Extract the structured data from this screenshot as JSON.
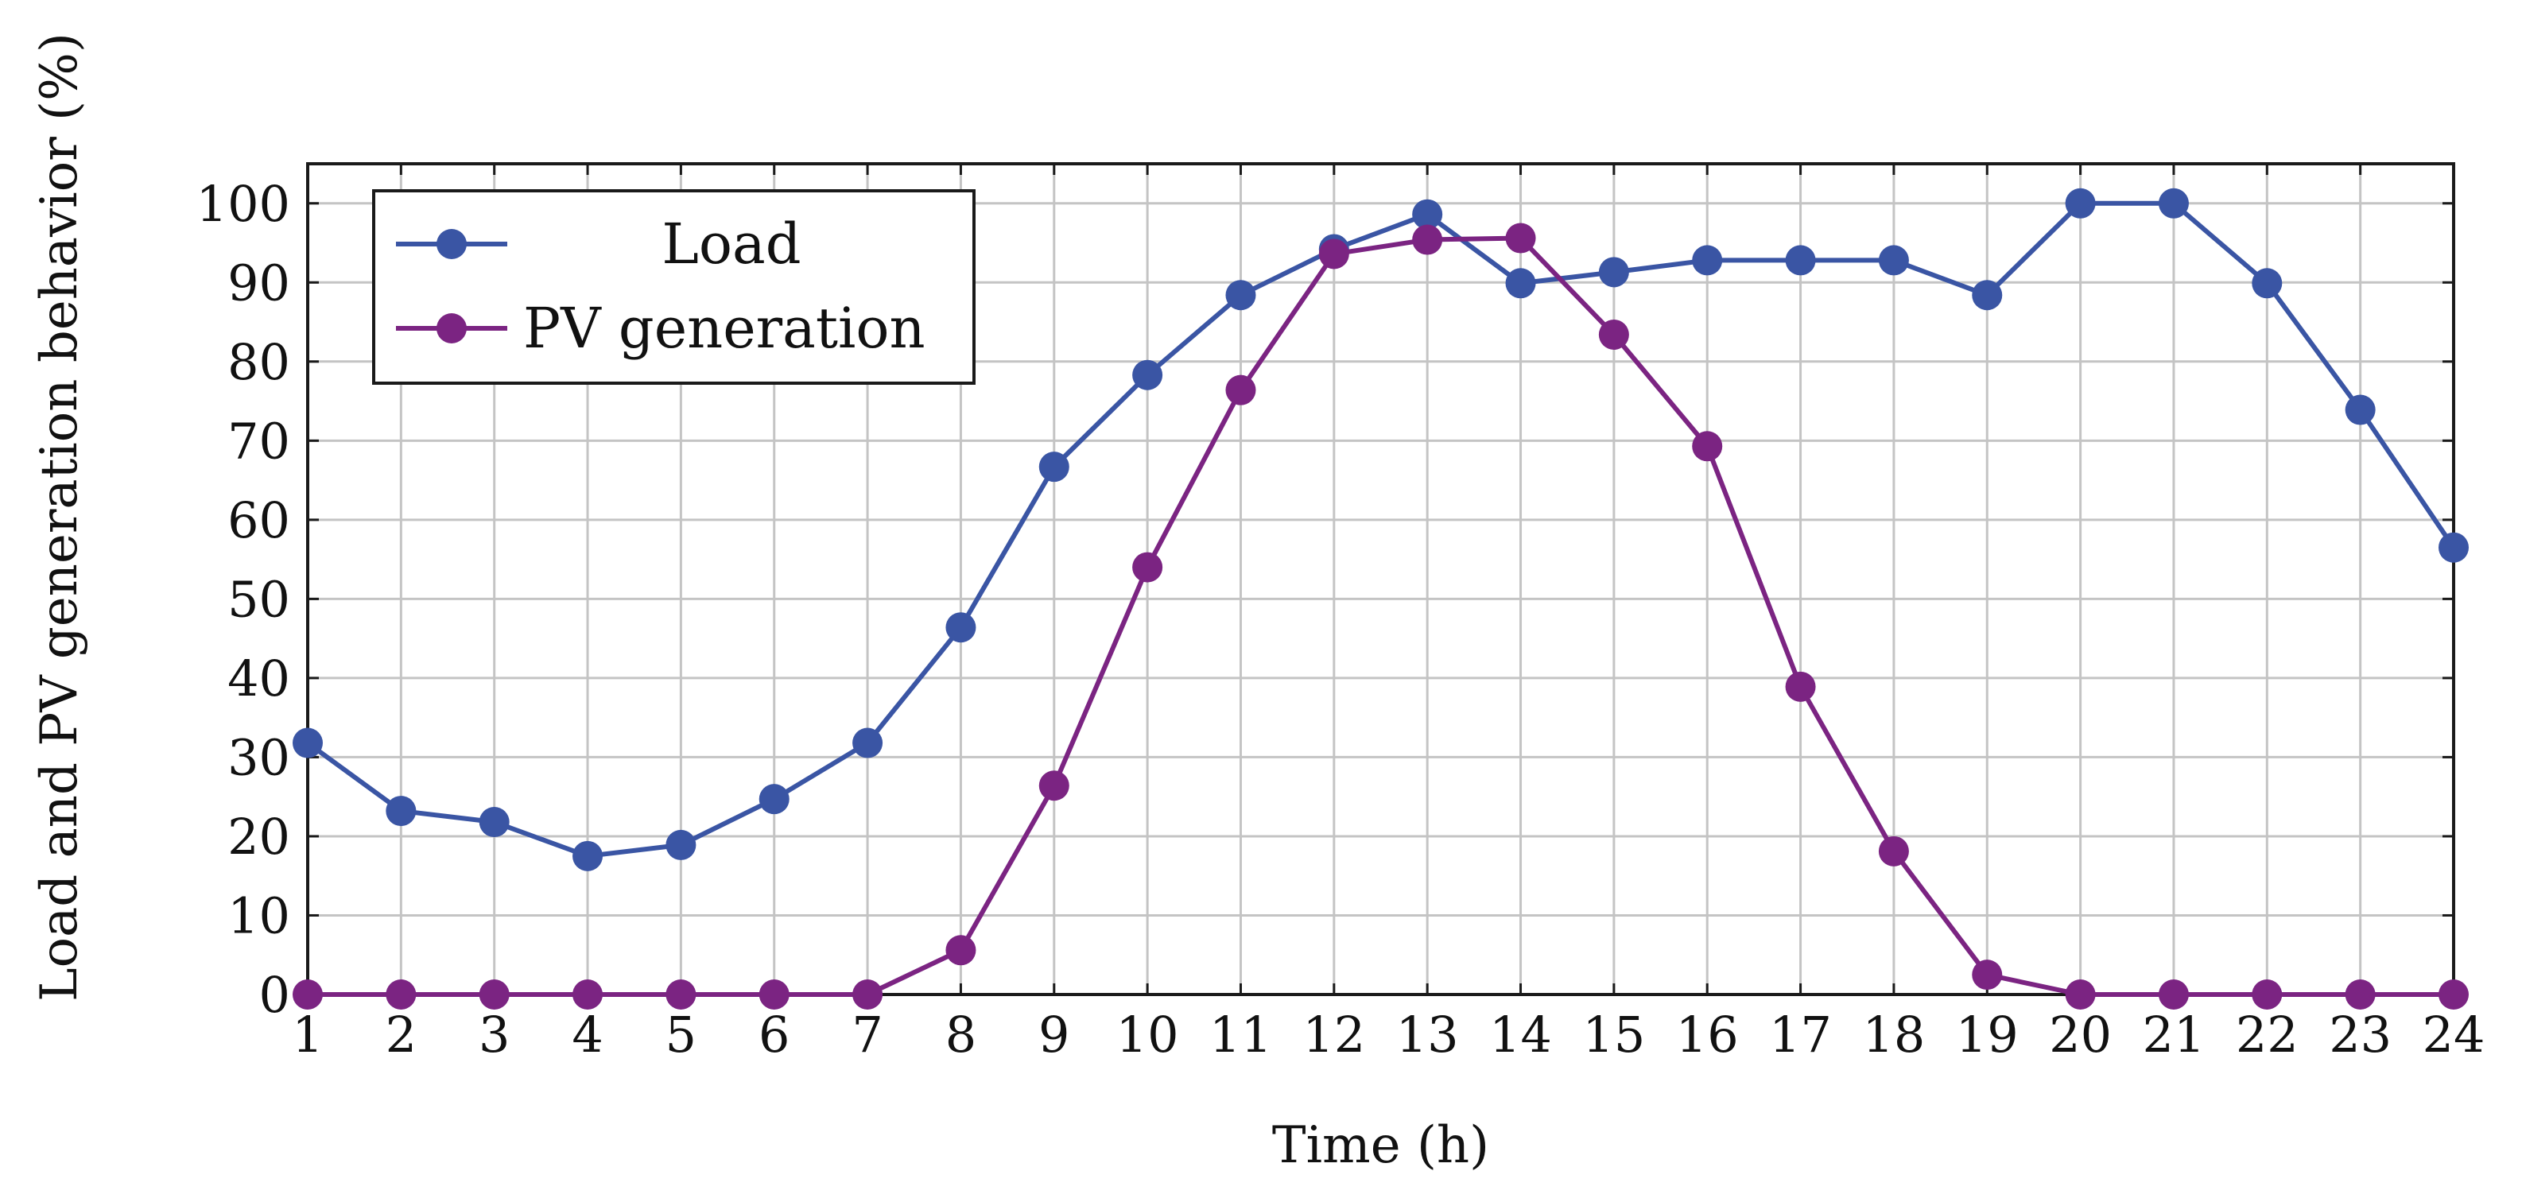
{
  "chart_data": {
    "type": "line",
    "title": "",
    "xlabel": "Time (h)",
    "ylabel": "Load and PV generation behavior (%)",
    "xlim": [
      1,
      24
    ],
    "ylim": [
      0,
      105
    ],
    "x": [
      1,
      2,
      3,
      4,
      5,
      6,
      7,
      8,
      9,
      10,
      11,
      12,
      13,
      14,
      15,
      16,
      17,
      18,
      19,
      20,
      21,
      22,
      23,
      24
    ],
    "x_ticks": [
      "1",
      "2",
      "3",
      "4",
      "5",
      "6",
      "7",
      "8",
      "9",
      "10",
      "11",
      "12",
      "13",
      "14",
      "15",
      "16",
      "17",
      "18",
      "19",
      "20",
      "21",
      "22",
      "23",
      "24"
    ],
    "y_ticks": [
      "0",
      "10",
      "20",
      "30",
      "40",
      "50",
      "60",
      "70",
      "80",
      "90",
      "100"
    ],
    "y_tick_values": [
      0,
      10,
      20,
      30,
      40,
      50,
      60,
      70,
      80,
      90,
      100
    ],
    "grid": true,
    "legend_position": "top-left",
    "series": [
      {
        "name": "Load",
        "color": "#3a55a4",
        "marker": "circle",
        "values": [
          31.8,
          23.2,
          21.8,
          17.5,
          18.9,
          24.7,
          31.8,
          46.4,
          66.7,
          78.3,
          88.4,
          94.2,
          98.6,
          89.9,
          91.3,
          92.8,
          92.8,
          92.8,
          88.4,
          100,
          100,
          89.9,
          73.9,
          56.5
        ]
      },
      {
        "name": "PV generation",
        "color": "#7b2482",
        "marker": "circle",
        "values": [
          0,
          0,
          0,
          0,
          0,
          0,
          0,
          5.6,
          26.4,
          54.0,
          76.4,
          93.6,
          95.4,
          95.6,
          83.4,
          69.3,
          38.9,
          18.1,
          2.5,
          0,
          0,
          0,
          0,
          0
        ]
      }
    ]
  }
}
